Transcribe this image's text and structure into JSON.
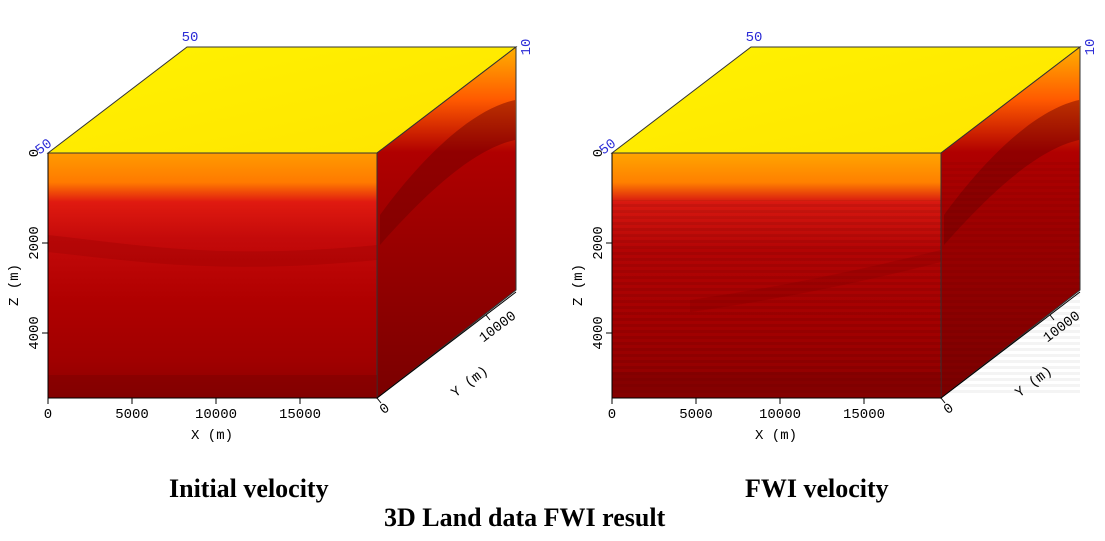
{
  "main_title": "3D Land data FWI result",
  "colors": {
    "top_face": "#ffee00",
    "deep_red": "#9a0000",
    "mid_red": "#d01010",
    "orange": "#ff8c00",
    "axis_blue": "#2b2bd6"
  },
  "panels": [
    {
      "caption": "Initial velocity",
      "x_axis_label": "X (m)",
      "y_axis_label": "Y (m)",
      "z_axis_label": "Z (m)",
      "x_ticks": [
        "0",
        "5000",
        "10000",
        "15000"
      ],
      "y_ticks": [
        "0",
        "10000"
      ],
      "z_ticks": [
        "2000",
        "4000"
      ],
      "slice_labels": {
        "top_back": "50",
        "top_right": "10",
        "front_left": "50",
        "depth_zero": "0"
      }
    },
    {
      "caption": "FWI velocity",
      "x_axis_label": "X (m)",
      "y_axis_label": "Y (m)",
      "z_axis_label": "Z (m)",
      "x_ticks": [
        "0",
        "5000",
        "10000",
        "15000"
      ],
      "y_ticks": [
        "0",
        "10000"
      ],
      "z_ticks": [
        "2000",
        "4000"
      ],
      "slice_labels": {
        "top_back": "50",
        "top_right": "10",
        "front_left": "50",
        "depth_zero": "0"
      }
    }
  ]
}
